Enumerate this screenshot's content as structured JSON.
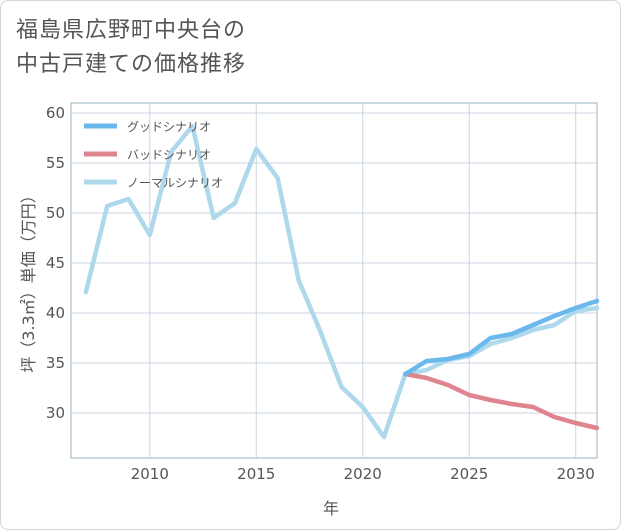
{
  "title_line1": "福島県広野町中央台の",
  "title_line2": "中古戸建ての価格推移",
  "chart_data": {
    "type": "line",
    "title": "福島県広野町中央台の中古戸建ての価格推移",
    "xlabel": "年",
    "ylabel": "坪（3.3㎡）単価（万円）",
    "xlim": [
      2006.3,
      2031
    ],
    "ylim": [
      25.5,
      61
    ],
    "xticks": [
      2010,
      2015,
      2020,
      2025,
      2030
    ],
    "yticks": [
      30,
      35,
      40,
      45,
      50,
      55,
      60
    ],
    "legend_position": "top-left",
    "series": [
      {
        "name": "グッドシナリオ",
        "color": "#6bb8ec",
        "x": [
          2022,
          2023,
          2024,
          2025,
          2026,
          2027,
          2028,
          2029,
          2030,
          2031
        ],
        "values": [
          33.9,
          35.2,
          35.4,
          35.9,
          37.5,
          37.9,
          38.8,
          39.7,
          40.5,
          41.2
        ]
      },
      {
        "name": "バッドシナリオ",
        "color": "#e0848f",
        "x": [
          2022,
          2023,
          2024,
          2025,
          2026,
          2027,
          2028,
          2029,
          2030,
          2031
        ],
        "values": [
          33.9,
          33.5,
          32.8,
          31.8,
          31.3,
          30.9,
          30.6,
          29.6,
          29.0,
          28.5
        ]
      },
      {
        "name": "ノーマルシナリオ",
        "color": "#aed8ec",
        "x": [
          2007,
          2008,
          2009,
          2010,
          2011,
          2012,
          2013,
          2014,
          2015,
          2016,
          2017,
          2018,
          2019,
          2020,
          2021,
          2022,
          2023,
          2024,
          2025,
          2026,
          2027,
          2028,
          2029,
          2030,
          2031
        ],
        "values": [
          42.1,
          50.7,
          51.4,
          47.8,
          56.1,
          58.7,
          49.5,
          51.0,
          56.4,
          53.5,
          43.2,
          38.2,
          32.6,
          30.6,
          27.6,
          33.9,
          34.3,
          35.3,
          35.7,
          36.9,
          37.5,
          38.3,
          38.8,
          40.2,
          40.5
        ]
      }
    ]
  }
}
